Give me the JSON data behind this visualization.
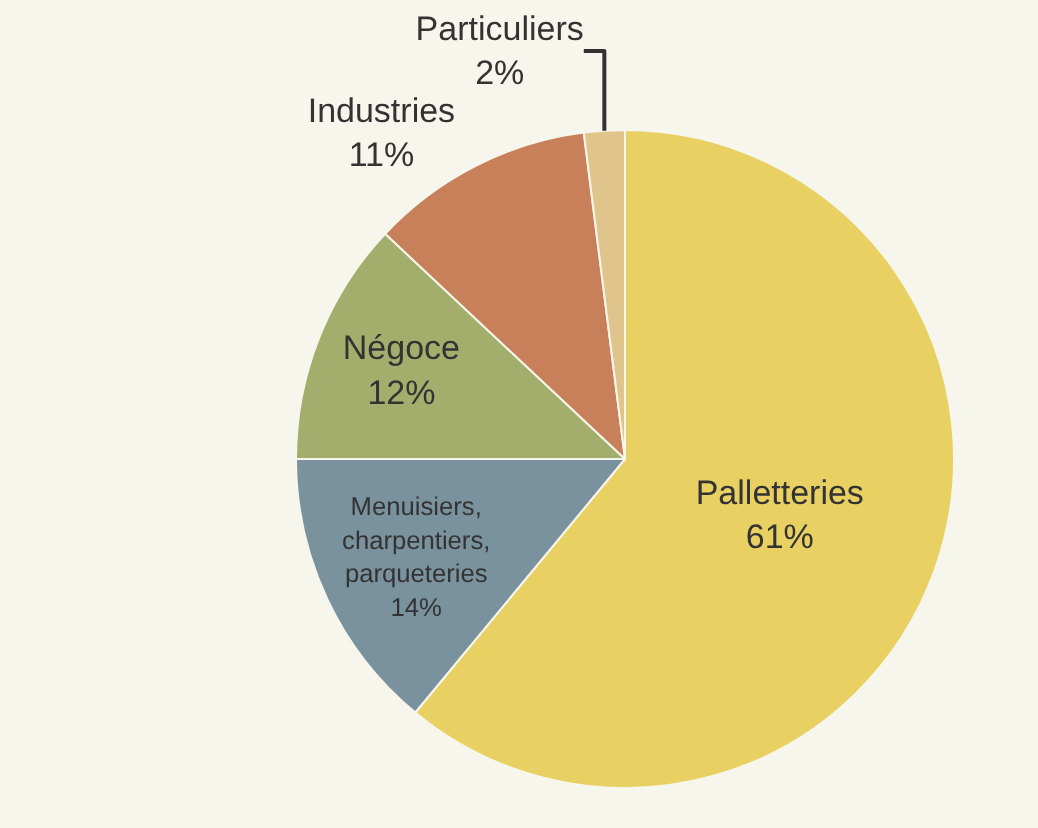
{
  "chart_data": {
    "type": "pie",
    "categories": [
      "Palletteries",
      "Menuisiers,\ncharpentiers,\nparqueteries",
      "Négoce",
      "Industries",
      "Particuliers"
    ],
    "values": [
      61,
      14,
      12,
      11,
      2
    ],
    "value_labels": [
      "61%",
      "14%",
      "12%",
      "11%",
      "2%"
    ],
    "colors": [
      "#e8d063",
      "#7a929e",
      "#a4ae6c",
      "#c7805a",
      "#dfc58b"
    ],
    "legend": false
  }
}
